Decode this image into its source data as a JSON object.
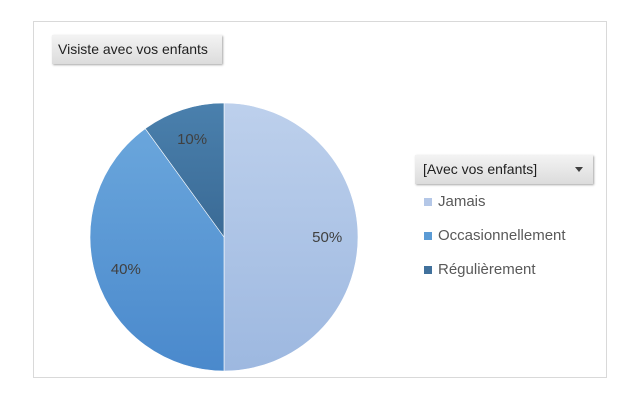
{
  "title_chip": {
    "label": "Visiste avec vos enfants"
  },
  "filter": {
    "label": "[Avec vos enfants]",
    "icon": "dropdown-arrow-icon"
  },
  "colors": {
    "jamais": "#b4c7e7",
    "occasionnellement": "#5b9bd5",
    "regulierement": "#41719c"
  },
  "chart_data": {
    "type": "pie",
    "title": "Visiste avec vos enfants",
    "legend_position": "right",
    "slices": [
      {
        "name": "Jamais",
        "value": 50,
        "label": "50%"
      },
      {
        "name": "Occasionnellement",
        "value": 40,
        "label": "40%"
      },
      {
        "name": "Régulièrement",
        "value": 10,
        "label": "10%"
      }
    ]
  }
}
